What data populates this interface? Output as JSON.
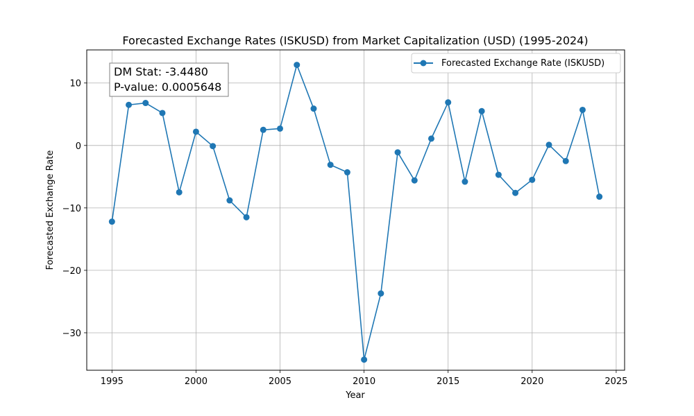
{
  "chart_data": {
    "type": "line",
    "title": "Forecasted Exchange Rates (ISKUSD) from Market Capitalization (USD) (1995-2024)",
    "xlabel": "Year",
    "ylabel": "Forecasted Exchange Rate",
    "xlim": [
      1993.5,
      2025.5
    ],
    "ylim": [
      -36.0,
      15.3
    ],
    "xticks": [
      1995,
      2000,
      2005,
      2010,
      2015,
      2020,
      2025
    ],
    "xtick_labels": [
      "1995",
      "2000",
      "2005",
      "2010",
      "2015",
      "2020",
      "2025"
    ],
    "yticks": [
      -30,
      -20,
      -10,
      0,
      10
    ],
    "ytick_labels": [
      "−30",
      "−20",
      "−10",
      "0",
      "10"
    ],
    "grid": true,
    "legend_position": "top-right",
    "series": [
      {
        "name": "Forecasted Exchange Rate (ISKUSD)",
        "color": "#1f77b4",
        "marker": "circle",
        "x": [
          1995,
          1996,
          1997,
          1998,
          1999,
          2000,
          2001,
          2002,
          2003,
          2004,
          2005,
          2006,
          2007,
          2008,
          2009,
          2010,
          2011,
          2012,
          2013,
          2014,
          2015,
          2016,
          2017,
          2018,
          2019,
          2020,
          2021,
          2022,
          2023,
          2024
        ],
        "y": [
          -12.2,
          6.5,
          6.8,
          5.2,
          -7.5,
          2.2,
          -0.1,
          -8.8,
          -11.5,
          2.5,
          2.7,
          12.9,
          5.9,
          -3.1,
          -4.3,
          -34.3,
          -23.7,
          -1.1,
          -5.6,
          1.1,
          6.9,
          -5.8,
          5.5,
          -4.7,
          -7.6,
          -5.5,
          0.1,
          -2.5,
          5.7,
          -8.2
        ]
      }
    ],
    "annotation": {
      "line1": "DM Stat: -3.4480",
      "line2": "P-value: 0.0005648"
    }
  }
}
